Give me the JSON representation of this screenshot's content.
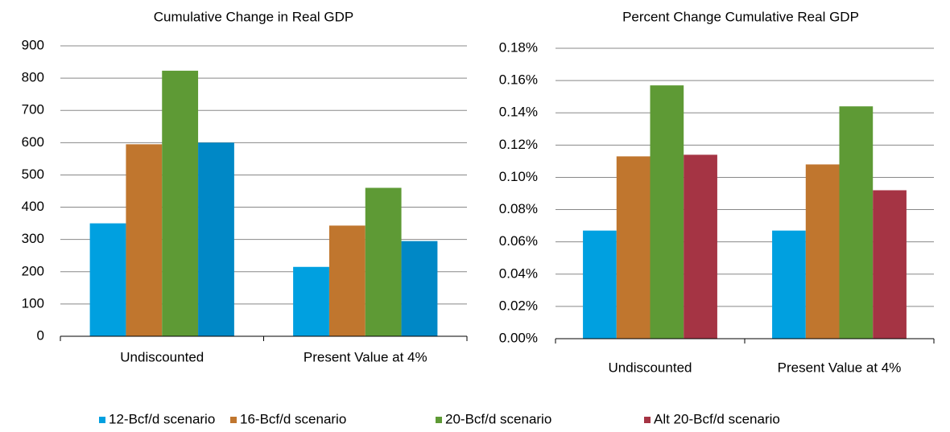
{
  "chart_data": [
    {
      "type": "bar",
      "title": "Cumulative Change in Real GDP",
      "categories": [
        "Undiscounted",
        "Present Value at 4%"
      ],
      "series": [
        {
          "name": "12-Bcf/d scenario",
          "color": "#00a0e0",
          "values": [
            350,
            215
          ]
        },
        {
          "name": "16-Bcf/d scenario",
          "color": "#c0762e",
          "values": [
            595,
            343
          ]
        },
        {
          "name": "20-Bcf/d scenario",
          "color": "#5e9a35",
          "values": [
            823,
            460
          ]
        },
        {
          "name": "Alt 20-Bcf/d scenario",
          "color": "#0088c6",
          "values": [
            600,
            295
          ]
        }
      ],
      "ylim": [
        0,
        900
      ],
      "yticks": [
        0,
        100,
        200,
        300,
        400,
        500,
        600,
        700,
        800,
        900
      ],
      "grid": true
    },
    {
      "type": "bar",
      "title": "Percent Change Cumulative Real GDP",
      "categories": [
        "Undiscounted",
        "Present Value at 4%"
      ],
      "series": [
        {
          "name": "12-Bcf/d scenario",
          "color": "#00a0e0",
          "values": [
            0.067,
            0.067
          ]
        },
        {
          "name": "16-Bcf/d scenario",
          "color": "#c0762e",
          "values": [
            0.113,
            0.108
          ]
        },
        {
          "name": "20-Bcf/d scenario",
          "color": "#5e9a35",
          "values": [
            0.157,
            0.144
          ]
        },
        {
          "name": "Alt 20-Bcf/d scenario",
          "color": "#a53444",
          "values": [
            0.114,
            0.092
          ]
        }
      ],
      "ylim": [
        0,
        0.18
      ],
      "yticks": [
        {
          "value": 0,
          "label": "0.00%"
        },
        {
          "value": 0.02,
          "label": "0.02%"
        },
        {
          "value": 0.04,
          "label": "0.04%"
        },
        {
          "value": 0.06,
          "label": "0.06%"
        },
        {
          "value": 0.08,
          "label": "0.08%"
        },
        {
          "value": 0.1,
          "label": "0.10%"
        },
        {
          "value": 0.12,
          "label": "0.12%"
        },
        {
          "value": 0.14,
          "label": "0.14%"
        },
        {
          "value": 0.16,
          "label": "0.16%"
        },
        {
          "value": 0.18,
          "label": "0.18%"
        }
      ],
      "grid": true,
      "legend": "bottom"
    }
  ]
}
